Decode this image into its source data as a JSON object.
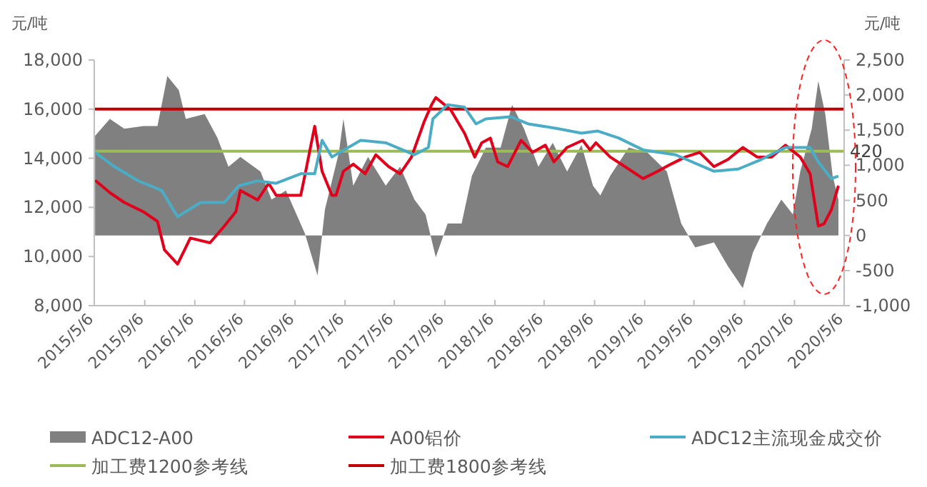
{
  "chart_data": {
    "type": "line",
    "ylabel": "元/吨",
    "y2label": "元/吨",
    "xlim": [
      "2015-05-06",
      "2020-05-06"
    ],
    "xticks": [
      {
        "value": "2015-05-06",
        "label": "2015/5/6"
      },
      {
        "value": "2015-09-06",
        "label": "2015/9/6"
      },
      {
        "value": "2016-01-06",
        "label": "2016/1/6"
      },
      {
        "value": "2016-05-06",
        "label": "2016/5/6"
      },
      {
        "value": "2016-09-06",
        "label": "2016/9/6"
      },
      {
        "value": "2017-01-06",
        "label": "2017/1/6"
      },
      {
        "value": "2017-05-06",
        "label": "2017/5/6"
      },
      {
        "value": "2017-09-06",
        "label": "2017/9/6"
      },
      {
        "value": "2018-01-06",
        "label": "2018/1/6"
      },
      {
        "value": "2018-05-06",
        "label": "2018/5/6"
      },
      {
        "value": "2018-09-06",
        "label": "2018/9/6"
      },
      {
        "value": "2019-01-06",
        "label": "2019/1/6"
      },
      {
        "value": "2019-05-06",
        "label": "2019/5/6"
      },
      {
        "value": "2019-09-06",
        "label": "2019/9/6"
      },
      {
        "value": "2020-01-06",
        "label": "2020/1/6"
      },
      {
        "value": "2020-05-06",
        "label": "2020/5/6"
      }
    ],
    "ylim": [
      8000,
      18000
    ],
    "yticks": [
      {
        "value": 8000,
        "label": "8,000"
      },
      {
        "value": 10000,
        "label": "10,000"
      },
      {
        "value": 12000,
        "label": "12,000"
      },
      {
        "value": 14000,
        "label": "14,000"
      },
      {
        "value": 16000,
        "label": "16,000"
      },
      {
        "value": 18000,
        "label": "18,000"
      }
    ],
    "y2lim": [
      -1000,
      2500
    ],
    "y2ticks": [
      {
        "value": -1000,
        "label": "-1,000"
      },
      -500,
      0,
      500,
      {
        "value": 1000,
        "label": "1,000"
      },
      {
        "value": 1500,
        "label": "1,500"
      },
      {
        "value": 2000,
        "label": "2,000"
      },
      {
        "value": 2500,
        "label": "2,500"
      }
    ],
    "series": [
      {
        "name": "ADC12-A00",
        "type": "area",
        "axis": "y2",
        "color": "#808080",
        "x": [
          "2015-05-08",
          "2015-06-13",
          "2015-07-18",
          "2015-09-03",
          "2015-10-07",
          "2015-10-31",
          "2015-11-28",
          "2015-12-15",
          "2016-01-30",
          "2016-03-01",
          "2016-03-28",
          "2016-04-26",
          "2016-06-14",
          "2016-07-11",
          "2016-08-15",
          "2016-09-30",
          "2016-10-31",
          "2016-11-18",
          "2016-12-22",
          "2017-01-02",
          "2017-01-26",
          "2017-03-03",
          "2017-04-15",
          "2017-05-20",
          "2017-06-24",
          "2017-07-21",
          "2017-08-15",
          "2017-09-13",
          "2017-10-17",
          "2017-11-11",
          "2017-12-15",
          "2018-01-20",
          "2018-02-17",
          "2018-03-18",
          "2018-04-22",
          "2018-05-27",
          "2018-07-01",
          "2018-08-05",
          "2018-09-02",
          "2018-09-20",
          "2018-10-14",
          "2018-11-28",
          "2019-01-13",
          "2019-03-01",
          "2019-04-05",
          "2019-05-09",
          "2019-06-24",
          "2019-07-28",
          "2019-09-02",
          "2019-09-27",
          "2019-10-31",
          "2019-12-05",
          "2020-01-02",
          "2020-01-20",
          "2020-02-17",
          "2020-03-04",
          "2020-03-21",
          "2020-04-08",
          "2020-04-22"
        ],
        "values": [
          1420,
          1660,
          1520,
          1560,
          1560,
          2270,
          2070,
          1660,
          1730,
          1390,
          980,
          1120,
          910,
          510,
          640,
          30,
          -570,
          370,
          1180,
          1660,
          710,
          1120,
          710,
          980,
          510,
          300,
          -310,
          170,
          170,
          850,
          1250,
          1250,
          1860,
          1520,
          980,
          1320,
          910,
          1290,
          710,
          570,
          850,
          1250,
          1180,
          910,
          170,
          -170,
          -100,
          -440,
          -750,
          -240,
          170,
          510,
          300,
          910,
          1520,
          2200,
          1730,
          850,
          510
        ]
      },
      {
        "name": "A00铝价",
        "type": "line",
        "color": "#e0001b",
        "x": [
          "2015-05-08",
          "2015-06-13",
          "2015-07-18",
          "2015-09-03",
          "2015-10-07",
          "2015-10-24",
          "2015-11-25",
          "2015-12-26",
          "2016-02-12",
          "2016-03-18",
          "2016-04-15",
          "2016-04-26",
          "2016-06-07",
          "2016-07-04",
          "2016-07-22",
          "2016-09-09",
          "2016-09-20",
          "2016-09-30",
          "2016-10-24",
          "2016-11-11",
          "2016-12-05",
          "2016-12-15",
          "2017-01-02",
          "2017-01-26",
          "2017-02-24",
          "2017-03-22",
          "2017-04-22",
          "2017-05-20",
          "2017-06-17",
          "2017-07-18",
          "2017-08-05",
          "2017-08-15",
          "2017-09-20",
          "2017-10-24",
          "2017-11-18",
          "2017-12-05",
          "2017-12-26",
          "2018-01-13",
          "2018-02-06",
          "2018-03-11",
          "2018-04-08",
          "2018-05-09",
          "2018-05-30",
          "2018-07-01",
          "2018-08-08",
          "2018-08-26",
          "2018-09-09",
          "2018-10-14",
          "2018-11-28",
          "2019-01-02",
          "2019-02-07",
          "2019-03-11",
          "2019-04-15",
          "2019-05-20",
          "2019-06-24",
          "2019-07-28",
          "2019-09-02",
          "2019-10-07",
          "2019-11-11",
          "2019-12-15",
          "2020-01-20",
          "2020-02-13",
          "2020-03-04",
          "2020-03-18",
          "2020-04-05",
          "2020-04-22"
        ],
        "values": [
          13100,
          12600,
          12200,
          11820,
          11430,
          10270,
          9690,
          10750,
          10560,
          11240,
          11820,
          12690,
          12300,
          12980,
          12490,
          12490,
          12490,
          13290,
          15300,
          13470,
          12490,
          12490,
          13470,
          13760,
          13370,
          14140,
          13660,
          13370,
          14050,
          15500,
          16180,
          16470,
          15980,
          15020,
          14050,
          14630,
          14820,
          13850,
          13660,
          14730,
          14240,
          14530,
          13850,
          14440,
          14730,
          14340,
          14630,
          14050,
          13560,
          13170,
          13470,
          13760,
          14050,
          14240,
          13660,
          13950,
          14440,
          14050,
          14050,
          14530,
          14050,
          13370,
          11240,
          11330,
          11910,
          12880
        ]
      },
      {
        "name": "ADC12主流现金成交价",
        "type": "line",
        "color": "#4bacc6",
        "x": [
          "2015-05-08",
          "2015-06-24",
          "2015-08-21",
          "2015-10-17",
          "2015-11-25",
          "2016-01-20",
          "2016-03-18",
          "2016-04-22",
          "2016-06-07",
          "2016-07-22",
          "2016-09-20",
          "2016-10-24",
          "2016-11-11",
          "2016-12-05",
          "2017-02-13",
          "2017-04-15",
          "2017-06-24",
          "2017-07-28",
          "2017-08-08",
          "2017-09-13",
          "2017-10-24",
          "2017-11-21",
          "2017-12-15",
          "2018-02-13",
          "2018-03-28",
          "2018-06-07",
          "2018-08-05",
          "2018-09-13",
          "2018-11-04",
          "2019-01-02",
          "2019-03-22",
          "2019-06-24",
          "2019-08-22",
          "2019-10-17",
          "2019-12-15",
          "2020-02-13",
          "2020-03-04",
          "2020-04-05",
          "2020-04-22"
        ],
        "values": [
          14240,
          13660,
          13080,
          12690,
          11620,
          12200,
          12200,
          12880,
          13080,
          12980,
          13370,
          13370,
          14730,
          14050,
          14730,
          14630,
          14140,
          14440,
          15600,
          16180,
          16080,
          15400,
          15600,
          15690,
          15400,
          15210,
          15020,
          15110,
          14820,
          14340,
          14140,
          13470,
          13560,
          13950,
          14440,
          14440,
          13850,
          13170,
          13270
        ]
      }
    ],
    "ref_lines": [
      {
        "axis": "y2",
        "value": 1200,
        "label": "加工费1200参考线",
        "color": "#9bbb59"
      },
      {
        "axis": "y2",
        "value": 1800,
        "label": "加工费1800参考线",
        "color": "#c00000"
      }
    ],
    "annotations": [
      "420"
    ],
    "legend": "bottom",
    "grid": false,
    "marker": "none",
    "line_style": "solid"
  }
}
